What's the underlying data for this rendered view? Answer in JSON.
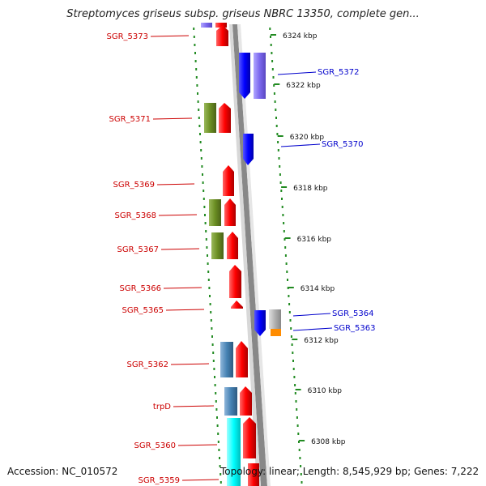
{
  "title": "Streptomyces griseus subsp. griseus NBRC 13350, complete gen...",
  "footer": {
    "accession": "Accession: NC_010572",
    "stats": "Topology: linear; Length: 8,545,929 bp; Genes: 7,222"
  },
  "colors": {
    "forward_label": "#cc0000",
    "reverse_label": "#0000cc",
    "red_gene": "#ff0000",
    "blue_gene": "#0000ff",
    "olive_gene": "#6b8e23",
    "steel_gene": "#4682b4",
    "cyan_gene": "#00ffff",
    "lavender_gene": "#7b68ee",
    "grey_gene": "#b0b0b0",
    "orange_gene": "#ff8c00",
    "backbone": "#888888",
    "tick": "#228b22"
  },
  "scale_labels": [
    "6324 kbp",
    "6322 kbp",
    "6320 kbp",
    "6318 kbp",
    "6316 kbp",
    "6314 kbp",
    "6312 kbp",
    "6310 kbp",
    "6308 kbp"
  ],
  "gene_labels_forward": [
    "SGR_5373",
    "SGR_5371",
    "SGR_5369",
    "SGR_5368",
    "SGR_5367",
    "SGR_5366",
    "SGR_5365",
    "SGR_5362",
    "trpD",
    "SGR_5360",
    "SGR_5359"
  ],
  "gene_labels_reverse": [
    "SGR_5372",
    "SGR_5370",
    "SGR_5364",
    "SGR_5363"
  ]
}
